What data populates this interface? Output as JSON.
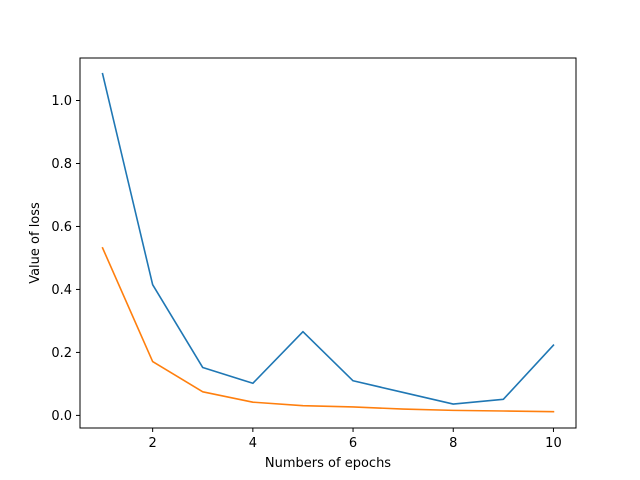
{
  "chart_data": {
    "type": "line",
    "title": "",
    "xlabel": "Numbers of epochs",
    "ylabel": "Value of loss",
    "xlim": [
      0.55,
      10.45
    ],
    "ylim": [
      -0.04,
      1.135
    ],
    "xticks": [
      2,
      4,
      6,
      8,
      10
    ],
    "yticks": [
      0.0,
      0.2,
      0.4,
      0.6,
      0.8,
      1.0
    ],
    "xtick_labels": [
      "2",
      "4",
      "6",
      "8",
      "10"
    ],
    "ytick_labels": [
      "0.0",
      "0.2",
      "0.4",
      "0.6",
      "0.8",
      "1.0"
    ],
    "grid": false,
    "legend": "none",
    "x": [
      1,
      2,
      3,
      4,
      5,
      6,
      7,
      8,
      9,
      10
    ],
    "series": [
      {
        "color": "#1f77b4",
        "values": [
          1.085,
          0.415,
          0.152,
          0.102,
          0.266,
          0.11,
          0.073,
          0.036,
          0.051,
          0.223
        ]
      },
      {
        "color": "#ff7f0e",
        "values": [
          0.532,
          0.171,
          0.075,
          0.042,
          0.031,
          0.027,
          0.02,
          0.016,
          0.014,
          0.012
        ]
      }
    ]
  }
}
